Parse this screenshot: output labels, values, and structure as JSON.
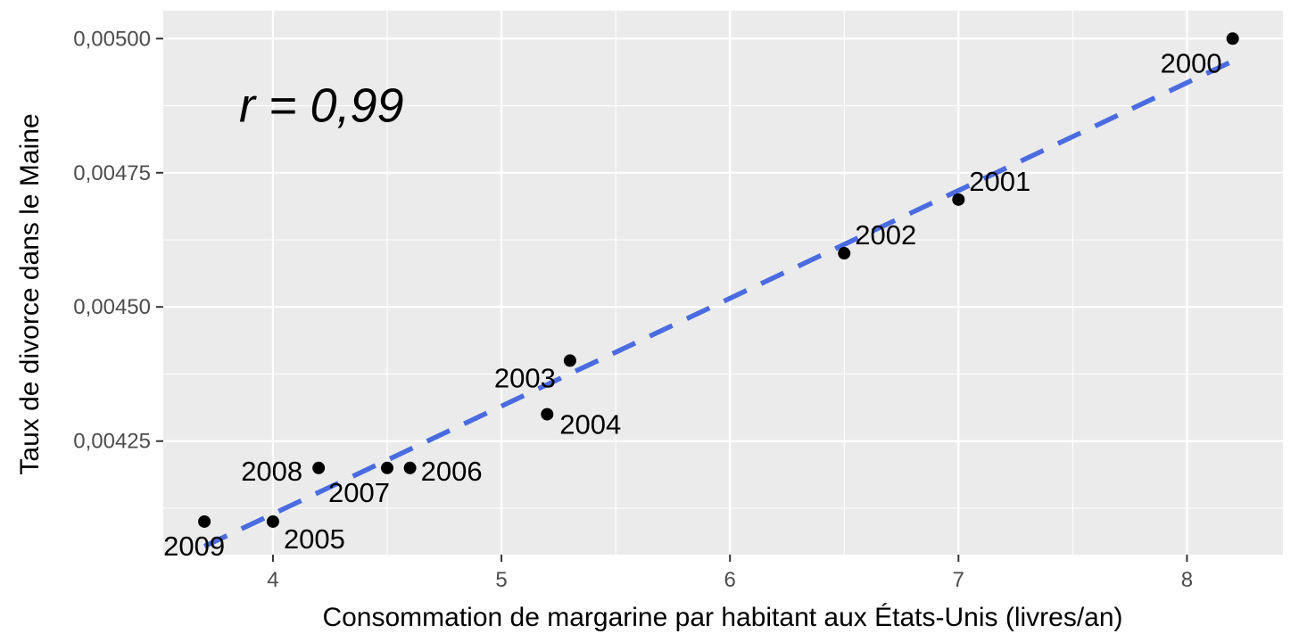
{
  "chart_data": {
    "type": "scatter",
    "title": "",
    "xlabel": "Consommation de margarine par habitant aux États-Unis (livres/an)",
    "ylabel": "Taux de divorce dans le Maine",
    "xlim": [
      3.52,
      8.42
    ],
    "ylim": [
      0.0040385,
      0.005052
    ],
    "x_ticks": [
      4,
      5,
      6,
      7,
      8
    ],
    "x_tick_labels": [
      "4",
      "5",
      "6",
      "7",
      "8"
    ],
    "y_ticks": [
      0.00425,
      0.0045,
      0.00475,
      0.005
    ],
    "y_tick_labels": [
      "0,00425",
      "0,00450",
      "0,00475",
      "0,00500"
    ],
    "grid": true,
    "points": [
      {
        "label": "2000",
        "x": 8.2,
        "y": 0.005
      },
      {
        "label": "2001",
        "x": 7.0,
        "y": 0.0047
      },
      {
        "label": "2002",
        "x": 6.5,
        "y": 0.0046
      },
      {
        "label": "2003",
        "x": 5.3,
        "y": 0.0044
      },
      {
        "label": "2004",
        "x": 5.2,
        "y": 0.0043
      },
      {
        "label": "2005",
        "x": 4.0,
        "y": 0.0041
      },
      {
        "label": "2006",
        "x": 4.6,
        "y": 0.0042
      },
      {
        "label": "2007",
        "x": 4.5,
        "y": 0.0042
      },
      {
        "label": "2008",
        "x": 4.2,
        "y": 0.0042
      },
      {
        "label": "2009",
        "x": 3.7,
        "y": 0.0041
      }
    ],
    "fit_line": {
      "x": [
        3.7,
        8.2
      ],
      "y": [
        0.004054,
        0.004958
      ],
      "style": "dashed",
      "color": "#4A6CE0"
    },
    "annotation": {
      "text": "r = 0,99",
      "x": 4.25,
      "y": 0.004875
    }
  }
}
